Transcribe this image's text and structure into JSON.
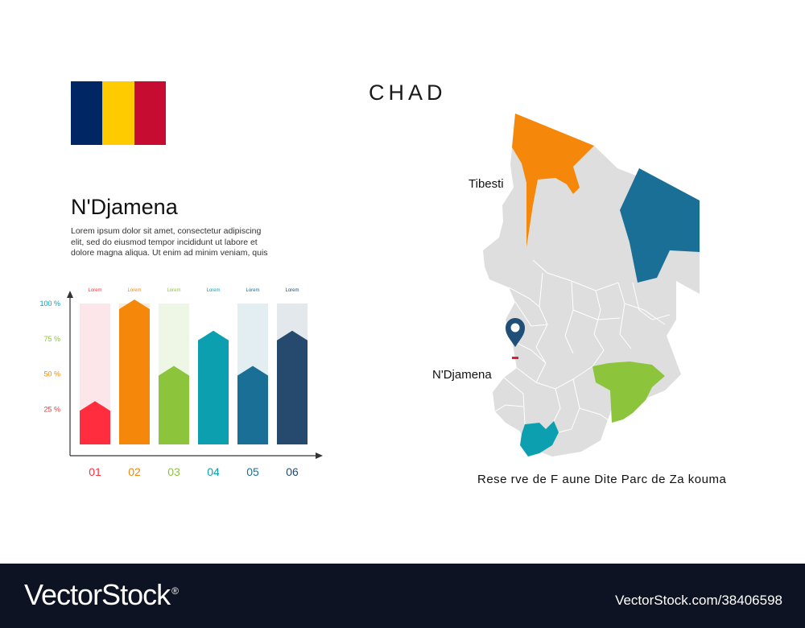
{
  "title": "CHAD",
  "flag": {
    "colors": [
      "#002664",
      "#FECB00",
      "#C60C30"
    ]
  },
  "left_panel": {
    "city": "N'Djamena",
    "lines": [
      "Lorem ipsum dolor sit amet, consectetur adipiscing",
      "elit, sed do eiusmod tempor incididunt ut labore et",
      "dolore magna aliqua. Ut enim ad minim veniam, quis"
    ]
  },
  "chart_data": {
    "type": "bar",
    "categories": [
      "01",
      "02",
      "03",
      "04",
      "05",
      "06"
    ],
    "top_labels": [
      "Lorem",
      "Lorem",
      "Lorem",
      "Lorem",
      "Lorem",
      "Lorem"
    ],
    "values": [
      25,
      100,
      50,
      75,
      50,
      75
    ],
    "background_levels": [
      100,
      100,
      100,
      75,
      100,
      100
    ],
    "y_ticks": [
      "25 %",
      "50 %",
      "75 %",
      "100 %"
    ],
    "y_tick_values": [
      25,
      50,
      75,
      100
    ],
    "ylim": [
      0,
      100
    ],
    "colors": [
      "#FF2D3E",
      "#F5880A",
      "#8CC43C",
      "#0B9FB0",
      "#1A6F97",
      "#254A6E"
    ],
    "bg_colors": [
      "#FDE6E9",
      "#FDEBD8",
      "#EEF6E6",
      "#E1F1F4",
      "#E3EEF3",
      "#E3E8EC"
    ],
    "tick_colors": [
      "#E5403E",
      "#F5880A",
      "#8CC43C",
      "#0B9FB0"
    ]
  },
  "map": {
    "labels": {
      "tibesti": "Tibesti",
      "capital": "N'Djamena",
      "reserve": "Rese rve de F aune Dite  Parc  de Za kouma"
    },
    "colors": {
      "base": "#DEDEDE",
      "tibesti": "#F5880A",
      "east": "#1A6F97",
      "zakouma": "#8CC43C",
      "south": "#0B9FB0",
      "marker": "#1F4E79",
      "city_dot": "#E0202E"
    }
  },
  "footer": {
    "logo": "VectorStock",
    "logo_mark": "®",
    "url": "VectorStock.com/38406598"
  }
}
